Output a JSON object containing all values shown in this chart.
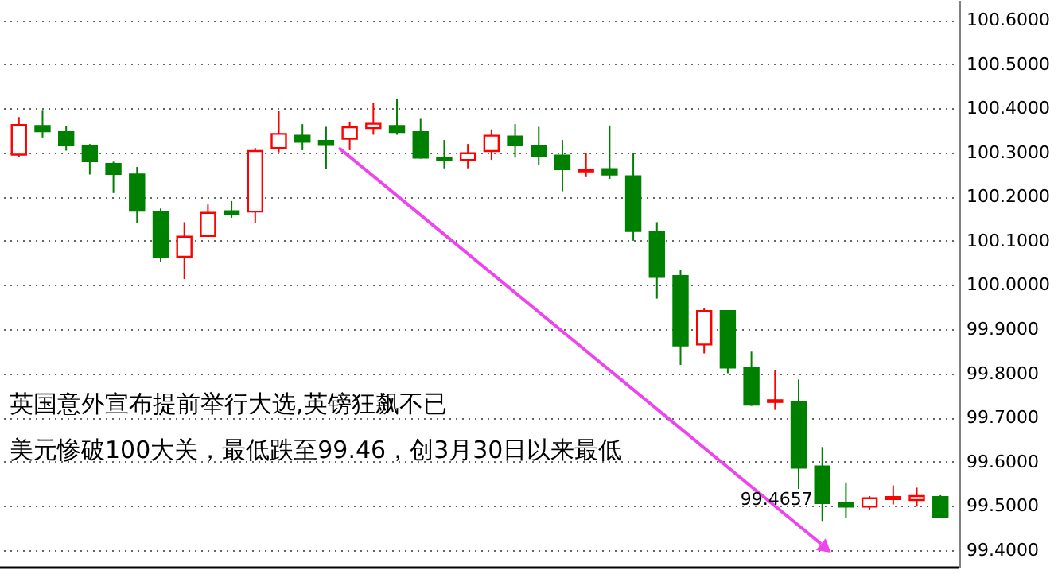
{
  "chart_data": {
    "type": "candlestick",
    "categories": [
      null,
      null,
      null,
      null,
      null,
      null,
      null,
      null,
      null,
      null,
      null,
      null,
      null,
      null,
      null,
      null,
      null,
      null,
      null,
      null,
      null,
      null,
      null,
      null,
      null,
      null,
      null,
      null,
      null,
      null,
      null,
      null,
      null,
      null,
      null,
      null,
      null,
      null,
      null,
      null
    ],
    "ohlc": [
      [
        100.295,
        100.38,
        100.29,
        100.362
      ],
      [
        100.36,
        100.396,
        100.334,
        100.348
      ],
      [
        100.346,
        100.36,
        100.304,
        100.316
      ],
      [
        100.315,
        100.319,
        100.25,
        100.28
      ],
      [
        100.274,
        100.279,
        100.208,
        100.251
      ],
      [
        100.25,
        100.267,
        100.14,
        100.168
      ],
      [
        100.164,
        100.173,
        100.053,
        100.064
      ],
      [
        100.064,
        100.142,
        100.013,
        100.109
      ],
      [
        100.111,
        100.182,
        100.111,
        100.163
      ],
      [
        100.167,
        100.19,
        100.152,
        100.16
      ],
      [
        100.166,
        100.31,
        100.14,
        100.303
      ],
      [
        100.31,
        100.394,
        100.3,
        100.342
      ],
      [
        100.338,
        100.364,
        100.305,
        100.324
      ],
      [
        100.326,
        100.358,
        100.262,
        100.317
      ],
      [
        100.331,
        100.37,
        100.305,
        100.357
      ],
      [
        100.355,
        100.411,
        100.34,
        100.365
      ],
      [
        100.36,
        100.42,
        100.34,
        100.346
      ],
      [
        100.346,
        100.376,
        100.286,
        100.288
      ],
      [
        100.288,
        100.328,
        100.264,
        100.283
      ],
      [
        100.283,
        100.319,
        100.264,
        100.298
      ],
      [
        100.303,
        100.352,
        100.283,
        100.338
      ],
      [
        100.336,
        100.364,
        100.288,
        100.316
      ],
      [
        100.315,
        100.358,
        100.271,
        100.291
      ],
      [
        100.293,
        100.328,
        100.212,
        100.262
      ],
      [
        100.257,
        100.298,
        100.244,
        100.26
      ],
      [
        100.262,
        100.361,
        100.24,
        100.25
      ],
      [
        100.246,
        100.298,
        100.1,
        100.122
      ],
      [
        100.121,
        100.142,
        99.969,
        100.018
      ],
      [
        100.02,
        100.034,
        99.819,
        99.863
      ],
      [
        99.865,
        99.948,
        99.845,
        99.941
      ],
      [
        99.941,
        99.941,
        99.8,
        99.813
      ],
      [
        99.812,
        99.849,
        99.726,
        99.729
      ],
      [
        99.735,
        99.807,
        99.717,
        99.739
      ],
      [
        99.735,
        99.786,
        99.538,
        99.586
      ],
      [
        99.589,
        99.633,
        99.4657,
        99.506
      ],
      [
        99.506,
        99.553,
        99.472,
        99.498
      ],
      [
        99.498,
        99.522,
        99.49,
        99.517
      ],
      [
        99.515,
        99.546,
        99.503,
        99.52
      ],
      [
        99.513,
        99.541,
        99.498,
        99.522
      ],
      [
        99.52,
        99.524,
        99.475,
        99.475
      ]
    ],
    "colors": [
      "#ff0000",
      "#008000",
      "#008000",
      "#008000",
      "#008000",
      "#008000",
      "#008000",
      "#ff0000",
      "#ff0000",
      "#008000",
      "#ff0000",
      "#ff0000",
      "#008000",
      "#008000",
      "#ff0000",
      "#ff0000",
      "#008000",
      "#008000",
      "#008000",
      "#ff0000",
      "#ff0000",
      "#008000",
      "#008000",
      "#008000",
      "#ff0000",
      "#008000",
      "#008000",
      "#008000",
      "#008000",
      "#ff0000",
      "#008000",
      "#008000",
      "#ff0000",
      "#008000",
      "#008000",
      "#008000",
      "#ff0000",
      "#ff0000",
      "#ff0000",
      "#008000"
    ],
    "ylim": [
      99.36,
      100.645
    ],
    "yticks": [
      {
        "value": 99.4,
        "label": "99.4000"
      },
      {
        "value": 99.5,
        "label": "99.5000"
      },
      {
        "value": 99.6,
        "label": "99.6000"
      },
      {
        "value": 99.7,
        "label": "99.7000"
      },
      {
        "value": 99.8,
        "label": "99.8000"
      },
      {
        "value": 99.9,
        "label": "99.9000"
      },
      {
        "value": 100.0,
        "label": "100.0000"
      },
      {
        "value": 100.1,
        "label": "100.1000"
      },
      {
        "value": 100.2,
        "label": "100.2000"
      },
      {
        "value": 100.3,
        "label": "100.3000"
      },
      {
        "value": 100.4,
        "label": "100.4000"
      },
      {
        "value": 100.5,
        "label": "100.5000"
      },
      {
        "value": 100.6,
        "label": "100.6000"
      }
    ],
    "grid": "y",
    "tick_labels": "y",
    "annotations": [
      "英国意外宣布提前举行大选,英镑狂飙不已",
      "美元惨破100大关，最低跌至99.46，创3月30日以来最低",
      "99.4657"
    ]
  }
}
